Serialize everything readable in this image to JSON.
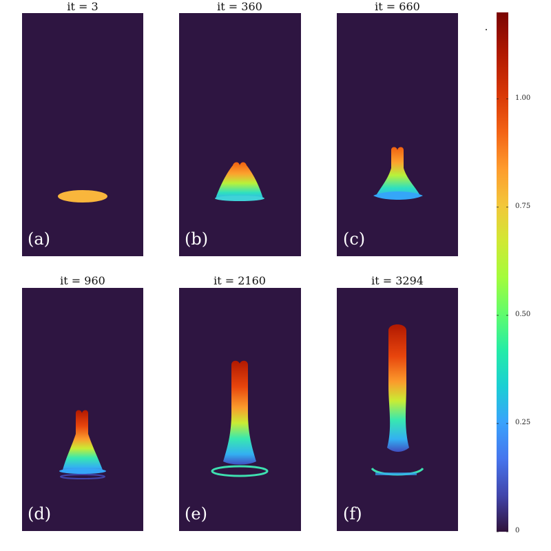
{
  "chart_data": {
    "type": "heatmap",
    "panels": [
      {
        "id": "a",
        "title": "it = 3",
        "label": "(a)"
      },
      {
        "id": "b",
        "title": "it = 360",
        "label": "(b)"
      },
      {
        "id": "c",
        "title": "it = 660",
        "label": "(c)"
      },
      {
        "id": "d",
        "title": "it = 960",
        "label": "(d)"
      },
      {
        "id": "e",
        "title": "it = 2160",
        "label": "(e)"
      },
      {
        "id": "f",
        "title": "it = 3294",
        "label": "(f)"
      }
    ],
    "colorbar": {
      "min": 0,
      "max": 1.2,
      "ticks": [
        0,
        0.25,
        0.5,
        0.75,
        1.0
      ],
      "tick_labels": [
        "0",
        "0.25",
        "0.50",
        "0.75",
        "1.00"
      ],
      "colormap": "turbo"
    },
    "background_color": "#2e1541"
  }
}
